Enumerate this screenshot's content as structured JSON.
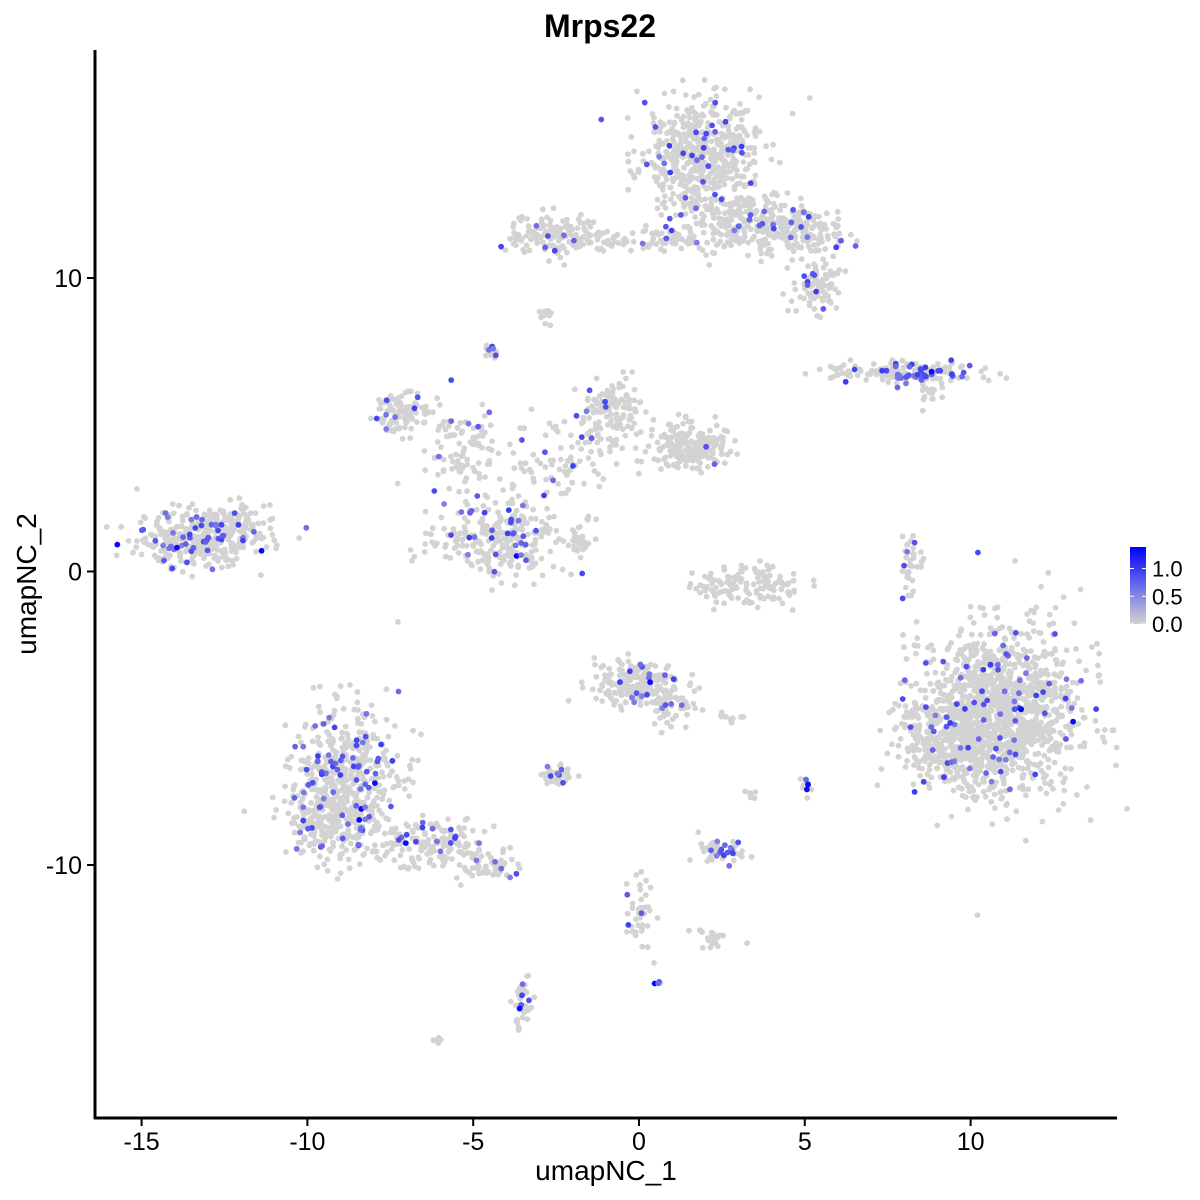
{
  "chart_data": {
    "type": "scatter",
    "title": "Mrps22",
    "xlabel": "umapNC_1",
    "ylabel": "umapNC_2",
    "xlim": [
      -16.4,
      14.4
    ],
    "ylim": [
      -18.6,
      17.8
    ],
    "x_ticks": [
      -15,
      -10,
      -5,
      0,
      5,
      10
    ],
    "y_ticks": [
      -10,
      0,
      10
    ],
    "x_tick_labels": [
      "-15",
      "-10",
      "-5",
      "0",
      "5",
      "10"
    ],
    "y_tick_labels": [
      "-10",
      "0",
      "10"
    ],
    "grid": false,
    "legend": {
      "position": "right",
      "type": "colorbar",
      "min": 0,
      "max": 1.4,
      "ticks": [
        0.0,
        0.5,
        1.0
      ],
      "tick_labels": [
        "0.0",
        "0.5",
        "1.0"
      ],
      "low_color": "#d3d3d3",
      "high_color": "#0000ff"
    },
    "clusters": [
      {
        "x": 1.8,
        "y": 14.2,
        "sx": 1.1,
        "sy": 1.2,
        "n": 520,
        "expr_frac": 0.07
      },
      {
        "x": 3.0,
        "y": 12.0,
        "sx": 1.0,
        "sy": 0.8,
        "n": 220,
        "expr_frac": 0.06
      },
      {
        "x": 4.8,
        "y": 11.6,
        "sx": 0.9,
        "sy": 0.5,
        "n": 180,
        "expr_frac": 0.06
      },
      {
        "x": 5.4,
        "y": 9.7,
        "sx": 0.5,
        "sy": 0.5,
        "n": 80,
        "expr_frac": 0.08
      },
      {
        "x": 0.6,
        "y": 11.3,
        "sx": 0.9,
        "sy": 0.3,
        "n": 60,
        "expr_frac": 0.03
      },
      {
        "x": -2.6,
        "y": 11.4,
        "sx": 0.8,
        "sy": 0.45,
        "n": 140,
        "expr_frac": 0.05
      },
      {
        "x": -1.0,
        "y": 11.3,
        "sx": 0.4,
        "sy": 0.2,
        "n": 20,
        "expr_frac": 0.1
      },
      {
        "x": -2.8,
        "y": 8.7,
        "sx": 0.15,
        "sy": 0.15,
        "n": 12,
        "expr_frac": 0.0
      },
      {
        "x": -4.5,
        "y": 7.5,
        "sx": 0.12,
        "sy": 0.2,
        "n": 14,
        "expr_frac": 0.2
      },
      {
        "x": 8.2,
        "y": 6.8,
        "sx": 1.5,
        "sy": 0.2,
        "n": 170,
        "expr_frac": 0.22
      },
      {
        "x": 8.8,
        "y": 6.0,
        "sx": 0.3,
        "sy": 0.3,
        "n": 15,
        "expr_frac": 0.0
      },
      {
        "x": -13.4,
        "y": 1.1,
        "sx": 1.1,
        "sy": 0.6,
        "n": 330,
        "expr_frac": 0.17
      },
      {
        "x": -11.9,
        "y": 1.6,
        "sx": 0.5,
        "sy": 0.6,
        "n": 60,
        "expr_frac": 0.1
      },
      {
        "x": -7.2,
        "y": 5.4,
        "sx": 0.6,
        "sy": 0.5,
        "n": 90,
        "expr_frac": 0.06
      },
      {
        "x": -5.3,
        "y": 4.1,
        "sx": 0.8,
        "sy": 0.8,
        "n": 90,
        "expr_frac": 0.05
      },
      {
        "x": -0.8,
        "y": 5.5,
        "sx": 0.6,
        "sy": 0.7,
        "n": 130,
        "expr_frac": 0.04
      },
      {
        "x": 1.6,
        "y": 4.2,
        "sx": 0.7,
        "sy": 0.5,
        "n": 200,
        "expr_frac": 0.02
      },
      {
        "x": -2.5,
        "y": 3.6,
        "sx": 1.2,
        "sy": 0.8,
        "n": 90,
        "expr_frac": 0.06
      },
      {
        "x": -4.2,
        "y": 1.0,
        "sx": 1.2,
        "sy": 0.85,
        "n": 280,
        "expr_frac": 0.1
      },
      {
        "x": -1.8,
        "y": 1.2,
        "sx": 0.5,
        "sy": 0.4,
        "n": 25,
        "expr_frac": 0.05
      },
      {
        "x": 3.3,
        "y": -0.5,
        "sx": 1.0,
        "sy": 0.4,
        "n": 130,
        "expr_frac": 0.0
      },
      {
        "x": 8.2,
        "y": 0.2,
        "sx": 0.2,
        "sy": 0.8,
        "n": 35,
        "expr_frac": 0.1
      },
      {
        "x": 10.9,
        "y": -4.8,
        "sx": 1.5,
        "sy": 1.8,
        "n": 1300,
        "expr_frac": 0.045
      },
      {
        "x": 9.5,
        "y": -6.0,
        "sx": 1.0,
        "sy": 0.8,
        "n": 250,
        "expr_frac": 0.04
      },
      {
        "x": 8.3,
        "y": -4.8,
        "sx": 0.4,
        "sy": 0.3,
        "n": 20,
        "expr_frac": 0.1
      },
      {
        "x": -8.8,
        "y": -7.2,
        "sx": 1.0,
        "sy": 1.6,
        "n": 520,
        "expr_frac": 0.11
      },
      {
        "x": -9.6,
        "y": -8.6,
        "sx": 0.6,
        "sy": 0.7,
        "n": 140,
        "expr_frac": 0.1
      },
      {
        "x": -6.4,
        "y": -9.3,
        "sx": 1.1,
        "sy": 0.5,
        "n": 160,
        "expr_frac": 0.1
      },
      {
        "x": -4.6,
        "y": -10.1,
        "sx": 0.6,
        "sy": 0.3,
        "n": 50,
        "expr_frac": 0.12
      },
      {
        "x": 0.0,
        "y": -3.8,
        "sx": 0.8,
        "sy": 0.5,
        "n": 240,
        "expr_frac": 0.04
      },
      {
        "x": 1.0,
        "y": -4.6,
        "sx": 0.5,
        "sy": 0.4,
        "n": 50,
        "expr_frac": 0.06
      },
      {
        "x": -2.5,
        "y": -6.9,
        "sx": 0.35,
        "sy": 0.2,
        "n": 40,
        "expr_frac": 0.15
      },
      {
        "x": 2.5,
        "y": -9.6,
        "sx": 0.45,
        "sy": 0.25,
        "n": 45,
        "expr_frac": 0.2
      },
      {
        "x": 5.0,
        "y": -7.3,
        "sx": 0.12,
        "sy": 0.25,
        "n": 12,
        "expr_frac": 0.4
      },
      {
        "x": 3.4,
        "y": -7.6,
        "sx": 0.1,
        "sy": 0.15,
        "n": 6,
        "expr_frac": 0.0
      },
      {
        "x": 0.0,
        "y": -11.5,
        "sx": 0.25,
        "sy": 0.9,
        "n": 40,
        "expr_frac": 0.12
      },
      {
        "x": 2.2,
        "y": -12.5,
        "sx": 0.4,
        "sy": 0.2,
        "n": 20,
        "expr_frac": 0.05
      },
      {
        "x": -3.5,
        "y": -14.6,
        "sx": 0.2,
        "sy": 0.6,
        "n": 40,
        "expr_frac": 0.1
      },
      {
        "x": -6.1,
        "y": -16.0,
        "sx": 0.12,
        "sy": 0.08,
        "n": 6,
        "expr_frac": 0.0
      },
      {
        "x": 0.6,
        "y": -14.0,
        "sx": 0.08,
        "sy": 0.08,
        "n": 4,
        "expr_frac": 0.5
      },
      {
        "x": 2.7,
        "y": -5.0,
        "sx": 0.3,
        "sy": 0.1,
        "n": 10,
        "expr_frac": 0.0
      }
    ]
  }
}
